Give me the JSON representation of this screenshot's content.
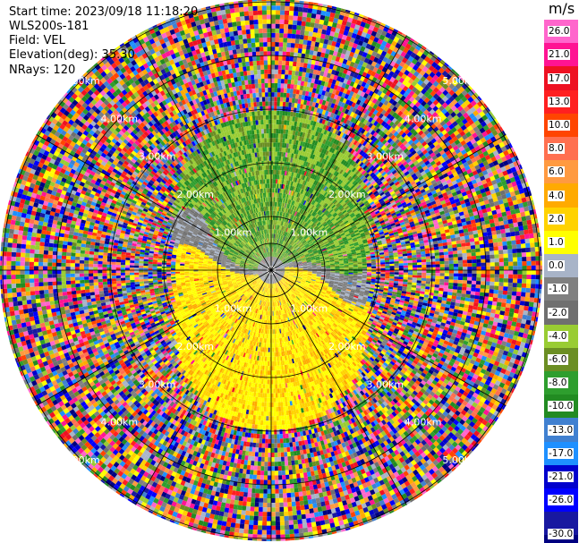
{
  "header": {
    "start_time": "Start time: 2023/09/18 11:18:20",
    "instrument": "WLS200s-181",
    "field": "Field: VEL",
    "elevation": "Elevation(deg): 35.30",
    "nrays": "NRays: 120"
  },
  "colorbar": {
    "unit": "m/s",
    "ticks": [
      "26.0",
      "21.0",
      "17.0",
      "13.0",
      "10.0",
      "8.0",
      "6.0",
      "4.0",
      "2.0",
      "1.0",
      "0.0",
      "-1.0",
      "-2.0",
      "-4.0",
      "-6.0",
      "-8.0",
      "-10.0",
      "-13.0",
      "-17.0",
      "-21.0",
      "-26.0",
      "-30.0"
    ],
    "colors": [
      "#ff66cc",
      "#ff1493",
      "#ee1122",
      "#ff2020",
      "#ff4500",
      "#ff7050",
      "#ff9a40",
      "#ffaa00",
      "#ffd200",
      "#ffff00",
      "#a8b4c8",
      "#808080",
      "#6f6f6f",
      "#99cc33",
      "#6b8e23",
      "#2e9e2e",
      "#228b22",
      "#4080d0",
      "#1e90ff",
      "#0000cd",
      "#0000ff",
      "#1818a0",
      "#000080"
    ]
  },
  "chart_data": {
    "type": "heatmap",
    "projection": "polar PPI",
    "field": "VEL",
    "nrays": 120,
    "range_rings_km": [
      0.5,
      1.0,
      2.0,
      3.0,
      4.0,
      5.0
    ],
    "ring_labels": [
      "0.50km",
      "1.00km",
      "2.00km",
      "3.00km",
      "4.00km",
      "5.00km"
    ],
    "value_range": [
      -30,
      26
    ]
  }
}
